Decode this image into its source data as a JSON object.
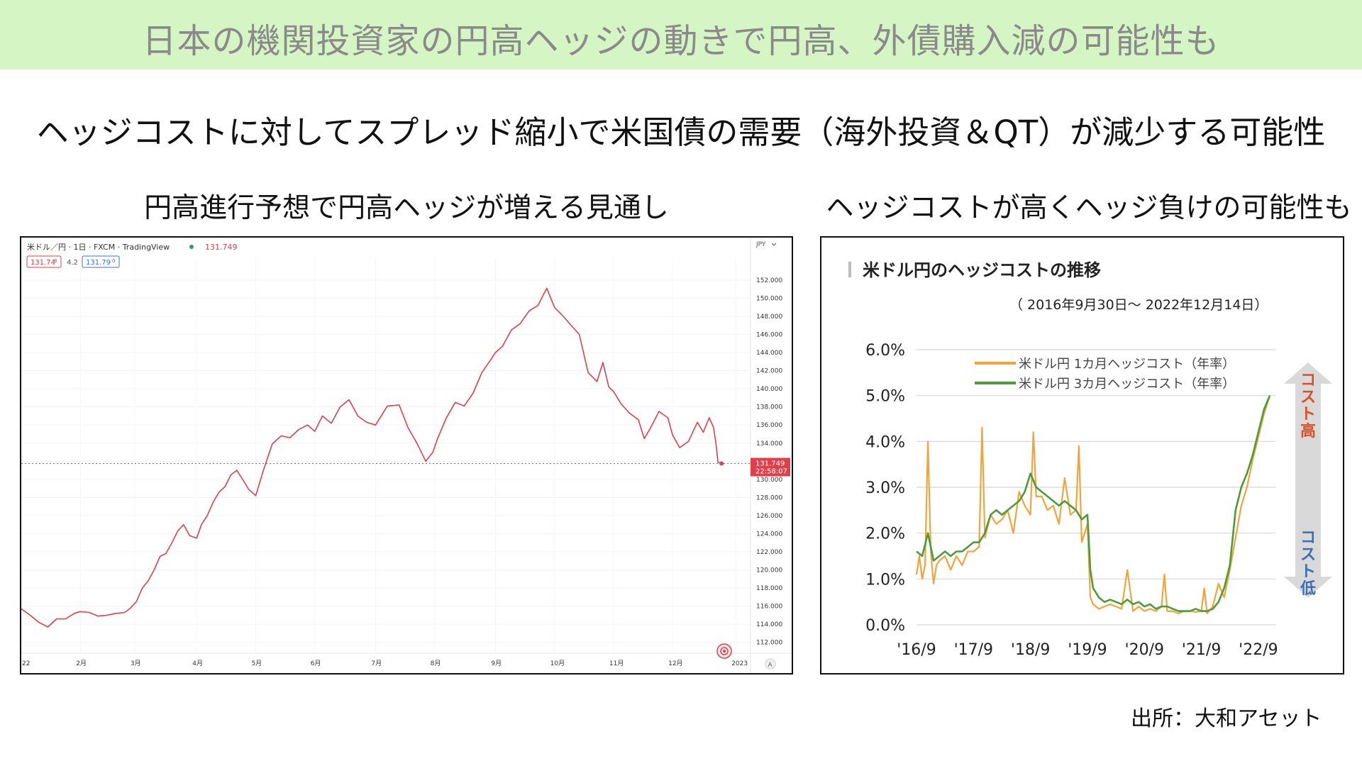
{
  "banner": {
    "title": "日本の機関投資家の円高ヘッジの動きで円高、外債購入減の可能性も"
  },
  "subtitle": "ヘッジコストに対してスプレッド縮小で米国債の需要（海外投資＆QT）が減少する可能性",
  "left_panel": {
    "title": "円高進行予想で円高ヘッジが増える見通し"
  },
  "right_panel": {
    "title": "ヘッジコストが高くヘッジ負けの可能性も"
  },
  "source": "出所：大和アセット",
  "colors": {
    "banner_bg": "#d6f5c4",
    "fx_line": "#e0404a",
    "price_tag": "#e0404a",
    "one_month": "#f0a53a",
    "three_month": "#4e9a3c",
    "cost_high": "#d9502a",
    "cost_low": "#3b6fb6"
  },
  "chart_data": [
    {
      "type": "line",
      "header": {
        "symbol": "米ドル／円 · 1日 · FXCM · TradingView",
        "last": "131.749",
        "bid": "131.74",
        "bid_suffix": "8",
        "spread": "4.2",
        "ask": "131.79",
        "ask_suffix": "0",
        "currency": "JPY"
      },
      "price_tag": {
        "value": "131.749",
        "time": "22:58:07"
      },
      "yticks": [
        "152.000",
        "150.000",
        "148.000",
        "146.000",
        "144.000",
        "142.000",
        "140.000",
        "138.000",
        "136.000",
        "134.000",
        "132.000",
        "130.000",
        "128.000",
        "126.000",
        "124.000",
        "122.000",
        "120.000",
        "118.000",
        "116.000",
        "114.000",
        "112.000"
      ],
      "ylim": [
        110.8,
        154.5
      ],
      "xlim": [
        0,
        12.35
      ],
      "xticks": [
        {
          "label": "22",
          "x": 0
        },
        {
          "label": "2月",
          "x": 1
        },
        {
          "label": "3月",
          "x": 1.92
        },
        {
          "label": "4月",
          "x": 2.97
        },
        {
          "label": "5月",
          "x": 3.97
        },
        {
          "label": "6月",
          "x": 4.97
        },
        {
          "label": "7月",
          "x": 6.0
        },
        {
          "label": "8月",
          "x": 7.0
        },
        {
          "label": "9月",
          "x": 8.03
        },
        {
          "label": "10月",
          "x": 9.03
        },
        {
          "label": "11月",
          "x": 10.03
        },
        {
          "label": "12月",
          "x": 11.03
        },
        {
          "label": "2023",
          "x": 12.1
        }
      ],
      "axis_badge": "A",
      "series": [
        {
          "x": [
            0,
            0.15,
            0.3,
            0.45,
            0.6,
            0.75,
            0.9,
            1.0,
            1.15,
            1.3,
            1.45,
            1.6,
            1.75,
            1.85,
            1.95,
            2.05,
            2.15,
            2.25,
            2.35,
            2.45,
            2.55,
            2.65,
            2.75,
            2.85,
            2.97,
            3.05,
            3.15,
            3.25,
            3.35,
            3.45,
            3.55,
            3.65,
            3.75,
            3.85,
            3.97,
            4.1,
            4.25,
            4.4,
            4.55,
            4.7,
            4.85,
            4.97,
            5.1,
            5.25,
            5.4,
            5.55,
            5.7,
            5.85,
            6.0,
            6.2,
            6.4,
            6.55,
            6.7,
            6.85,
            6.97,
            7.05,
            7.2,
            7.35,
            7.5,
            7.65,
            7.8,
            7.95,
            8.03,
            8.15,
            8.3,
            8.45,
            8.6,
            8.75,
            8.9,
            9.03,
            9.15,
            9.3,
            9.45,
            9.6,
            9.75,
            9.85,
            9.95,
            10.03,
            10.15,
            10.3,
            10.45,
            10.55,
            10.65,
            10.8,
            10.95,
            11.03,
            11.15,
            11.3,
            11.45,
            11.55,
            11.65,
            11.72,
            11.76,
            11.8,
            11.86
          ],
          "y": [
            115.7,
            115.0,
            114.2,
            113.7,
            114.6,
            114.6,
            115.2,
            115.4,
            115.3,
            114.9,
            115.0,
            115.2,
            115.3,
            115.8,
            116.5,
            118.0,
            118.8,
            120.0,
            121.5,
            121.8,
            123.0,
            124.3,
            125.0,
            123.8,
            123.5,
            125.0,
            126.0,
            127.5,
            128.6,
            129.2,
            130.5,
            131.0,
            130.0,
            128.9,
            128.2,
            131.0,
            133.9,
            134.8,
            134.6,
            135.5,
            136.0,
            135.3,
            137.0,
            136.2,
            138.0,
            138.8,
            137.0,
            136.3,
            136.0,
            138.1,
            138.2,
            135.7,
            134.0,
            132.0,
            133.0,
            134.5,
            136.8,
            138.5,
            138.1,
            139.5,
            141.8,
            143.2,
            144.0,
            144.7,
            146.5,
            147.2,
            148.6,
            149.2,
            151.1,
            149.0,
            148.2,
            147.1,
            146.0,
            141.8,
            140.8,
            142.9,
            140.2,
            139.7,
            138.4,
            137.3,
            136.6,
            134.5,
            135.6,
            137.5,
            136.8,
            134.9,
            133.5,
            134.2,
            136.3,
            135.2,
            136.8,
            135.8,
            134.2,
            131.9,
            131.749
          ]
        }
      ]
    },
    {
      "type": "line",
      "title": "米ドル円のヘッジコストの推移",
      "subtitle": "（ 2016年9月30日～ 2022年12月14日）",
      "yticks": [
        "0.0%",
        "1.0%",
        "2.0%",
        "3.0%",
        "4.0%",
        "5.0%",
        "6.0%"
      ],
      "ylim": [
        0,
        6
      ],
      "xticks": [
        "'16/9",
        "'17/9",
        "'18/9",
        "'19/9",
        "'20/9",
        "'21/9",
        "'22/9"
      ],
      "xlim": [
        0,
        6.3
      ],
      "side_label_top": "コスト高",
      "side_label_bottom": "コスト低",
      "series": [
        {
          "name": "米ドル円 1カ月ヘッジコスト（年率）",
          "x": [
            0,
            0.05,
            0.1,
            0.15,
            0.2,
            0.25,
            0.3,
            0.35,
            0.4,
            0.5,
            0.6,
            0.7,
            0.8,
            0.9,
            1.0,
            1.1,
            1.15,
            1.2,
            1.3,
            1.4,
            1.5,
            1.6,
            1.7,
            1.8,
            1.9,
            2.0,
            2.05,
            2.1,
            2.2,
            2.3,
            2.4,
            2.5,
            2.6,
            2.7,
            2.8,
            2.85,
            2.9,
            3.0,
            3.05,
            3.1,
            3.15,
            3.2,
            3.3,
            3.4,
            3.5,
            3.6,
            3.7,
            3.8,
            3.9,
            4.0,
            4.1,
            4.2,
            4.3,
            4.35,
            4.4,
            4.5,
            4.6,
            4.7,
            4.8,
            4.9,
            5.0,
            5.05,
            5.1,
            5.2,
            5.3,
            5.4,
            5.5,
            5.6,
            5.7,
            5.8,
            5.9,
            6.0,
            6.1,
            6.2
          ],
          "y": [
            1.1,
            1.5,
            1.0,
            1.3,
            4.0,
            1.6,
            0.9,
            1.3,
            1.4,
            1.5,
            1.2,
            1.5,
            1.3,
            1.6,
            1.6,
            1.7,
            4.3,
            1.9,
            2.4,
            2.2,
            2.3,
            2.5,
            2.0,
            2.9,
            2.6,
            2.4,
            4.2,
            2.8,
            2.8,
            2.5,
            2.6,
            2.2,
            3.2,
            2.4,
            2.5,
            3.9,
            1.8,
            2.2,
            0.6,
            0.45,
            0.4,
            0.35,
            0.4,
            0.45,
            0.4,
            0.35,
            1.2,
            0.3,
            0.4,
            0.3,
            0.35,
            0.3,
            0.4,
            1.1,
            0.3,
            0.3,
            0.25,
            0.3,
            0.3,
            0.28,
            0.3,
            0.8,
            0.25,
            0.4,
            0.9,
            0.6,
            1.2,
            1.9,
            2.6,
            3.0,
            3.6,
            4.1,
            4.6,
            5.0
          ]
        },
        {
          "name": "米ドル円 3カ月ヘッジコスト（年率）",
          "x": [
            0,
            0.1,
            0.2,
            0.3,
            0.4,
            0.5,
            0.6,
            0.7,
            0.8,
            0.9,
            1.0,
            1.1,
            1.2,
            1.3,
            1.4,
            1.5,
            1.6,
            1.7,
            1.8,
            1.9,
            2.0,
            2.1,
            2.2,
            2.3,
            2.4,
            2.5,
            2.6,
            2.7,
            2.8,
            2.9,
            3.0,
            3.05,
            3.1,
            3.2,
            3.3,
            3.4,
            3.5,
            3.6,
            3.7,
            3.8,
            3.9,
            4.0,
            4.1,
            4.2,
            4.3,
            4.4,
            4.5,
            4.6,
            4.7,
            4.8,
            4.9,
            5.0,
            5.1,
            5.2,
            5.3,
            5.4,
            5.5,
            5.6,
            5.7,
            5.8,
            5.9,
            6.0,
            6.1,
            6.2
          ],
          "y": [
            1.6,
            1.5,
            2.0,
            1.4,
            1.5,
            1.6,
            1.5,
            1.6,
            1.6,
            1.7,
            1.8,
            1.8,
            2.0,
            2.4,
            2.5,
            2.4,
            2.5,
            2.6,
            2.7,
            2.9,
            3.3,
            3.0,
            2.9,
            2.8,
            2.7,
            2.6,
            2.7,
            2.6,
            2.5,
            2.3,
            2.4,
            1.2,
            0.8,
            0.6,
            0.5,
            0.55,
            0.5,
            0.45,
            0.55,
            0.45,
            0.5,
            0.4,
            0.45,
            0.35,
            0.4,
            0.4,
            0.35,
            0.3,
            0.3,
            0.3,
            0.35,
            0.3,
            0.3,
            0.35,
            0.5,
            0.8,
            1.3,
            2.5,
            3.0,
            3.3,
            3.7,
            4.2,
            4.7,
            5.0
          ]
        }
      ]
    }
  ]
}
